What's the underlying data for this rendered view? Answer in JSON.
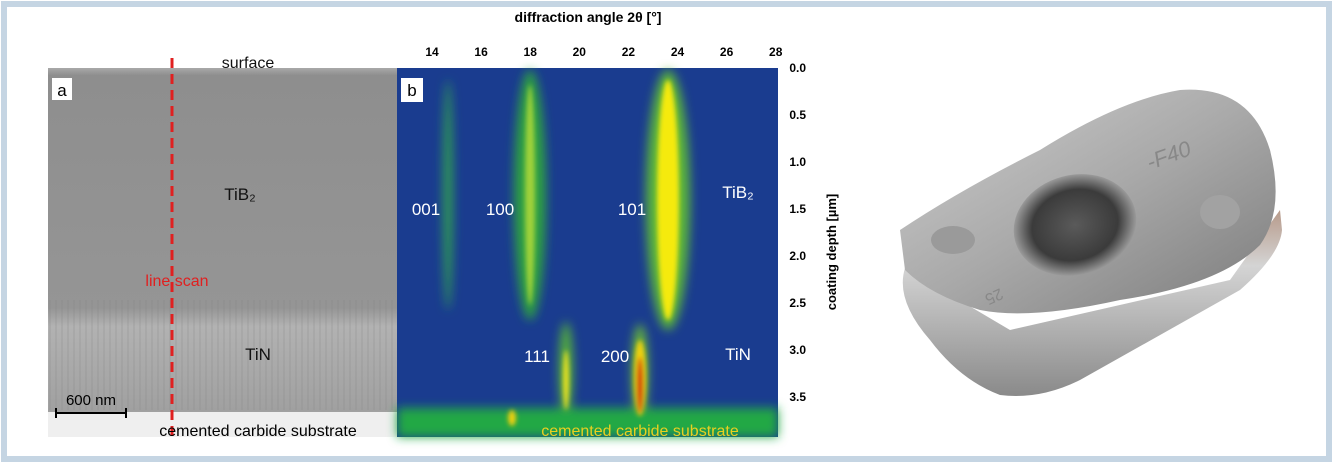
{
  "panel_a": {
    "label": "a",
    "surface": "surface",
    "layer_top": "TiB₂",
    "line_scan": "line scan",
    "layer_bottom": "TiN",
    "scale_bar": "600 nm",
    "substrate": "cemented carbide substrate"
  },
  "panel_b": {
    "label": "b",
    "x_axis_title": "diffraction angle 2θ [°]",
    "x_ticks": [
      "14",
      "16",
      "18",
      "20",
      "22",
      "24",
      "26",
      "28"
    ],
    "y_axis_title": "coating depth [µm]",
    "y_ticks": [
      "0.0",
      "0.5",
      "1.0",
      "1.5",
      "2.0",
      "2.5",
      "3.0",
      "3.5"
    ],
    "peaks": [
      "001",
      "100",
      "101",
      "111",
      "200"
    ],
    "layer_top": "TiB₂",
    "layer_bottom": "TiN",
    "substrate": "cemented carbide substrate"
  },
  "insert": {
    "marking_top": "-F40",
    "marking_side": "25"
  }
}
